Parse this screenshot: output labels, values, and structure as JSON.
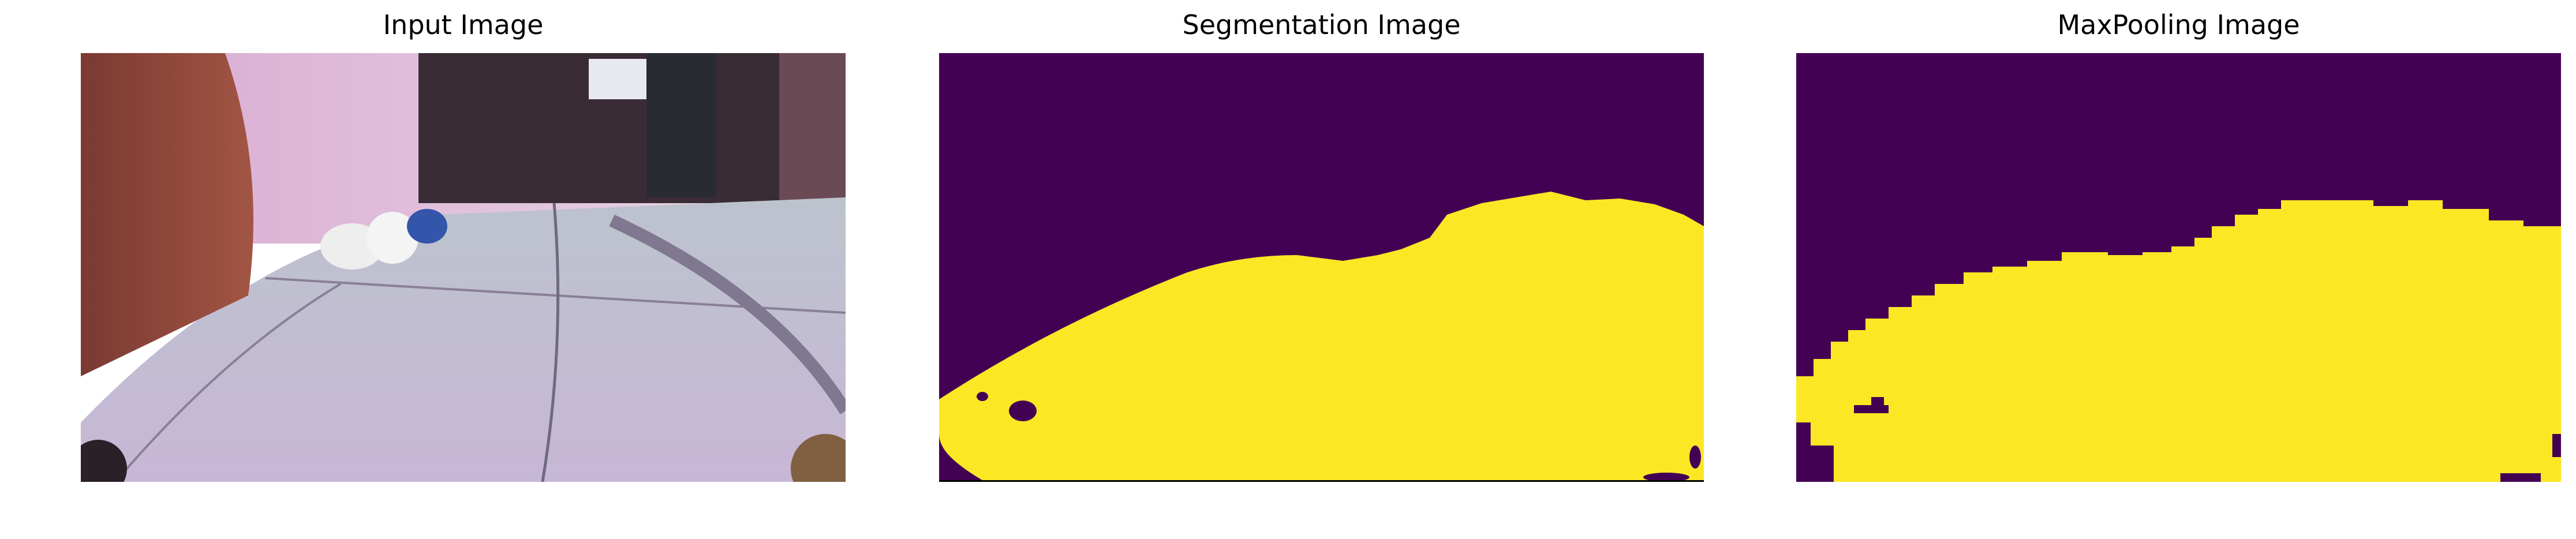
{
  "panels": [
    {
      "title": "Input Image"
    },
    {
      "title": "Segmentation Image"
    },
    {
      "title": "MaxPooling Image"
    }
  ],
  "colors": {
    "background_class": "#440154",
    "floor_class": "#fde725"
  }
}
